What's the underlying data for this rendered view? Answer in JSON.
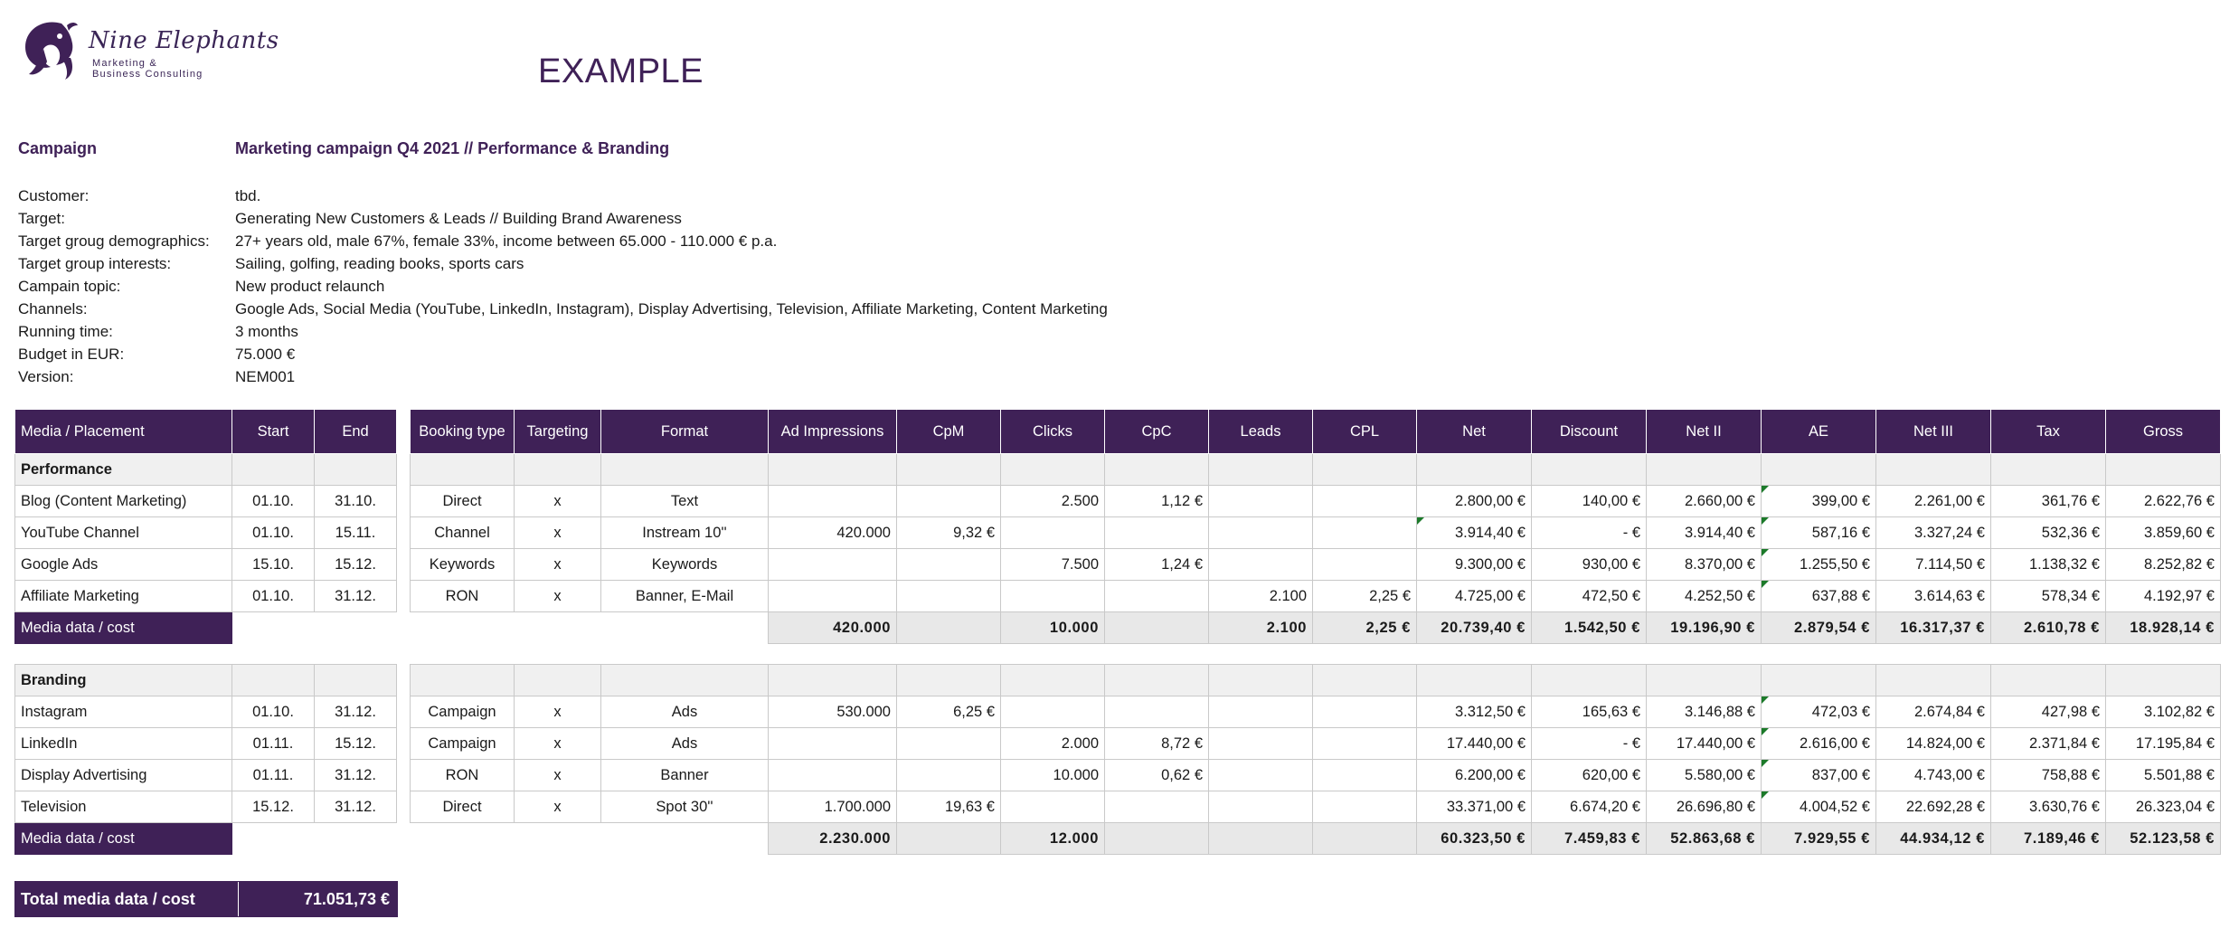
{
  "logo": {
    "name": "Nine Elephants",
    "sub1": "Marketing &",
    "sub2": "Business Consulting"
  },
  "title": "EXAMPLE",
  "campaign": {
    "label": "Campaign",
    "value": "Marketing campaign Q4 2021 // Performance & Branding"
  },
  "info": [
    {
      "k": "Customer:",
      "v": "tbd."
    },
    {
      "k": "Target:",
      "v": "Generating New Customers & Leads // Building Brand Awareness"
    },
    {
      "k": "Target groug demographics:",
      "v": "27+ years old, male 67%, female 33%, income between 65.000 - 110.000 € p.a."
    },
    {
      "k": "Target group interests:",
      "v": "Sailing, golfing, reading books, sports cars"
    },
    {
      "k": "Campain topic:",
      "v": "New product relaunch"
    },
    {
      "k": "Channels:",
      "v": "Google Ads, Social Media (YouTube, LinkedIn, Instagram), Display Advertising, Television, Affiliate Marketing, Content Marketing"
    },
    {
      "k": "Running time:",
      "v": "3 months"
    },
    {
      "k": "Budget in EUR:",
      "v": "75.000 €"
    },
    {
      "k": "Version:",
      "v": "NEM001"
    }
  ],
  "left_headers": [
    "Media / Placement",
    "Start",
    "End"
  ],
  "right_headers": [
    "Booking type",
    "Targeting",
    "Format",
    "Ad Impressions",
    "CpM",
    "Clicks",
    "CpC",
    "Leads",
    "CPL",
    "Net",
    "Discount",
    "Net II",
    "AE",
    "Net III",
    "Tax",
    "Gross"
  ],
  "sections": [
    {
      "name": "Performance",
      "rows": [
        {
          "media": "Blog (Content Marketing)",
          "start": "01.10.",
          "end": "31.10.",
          "cells": [
            "Direct",
            "x",
            "Text",
            "",
            "",
            "2.500",
            "1,12 €",
            "",
            "",
            "2.800,00 €",
            "140,00 €",
            "2.660,00 €",
            "399,00 €",
            "2.261,00 €",
            "361,76 €",
            "2.622,76 €"
          ]
        },
        {
          "media": "YouTube Channel",
          "start": "01.10.",
          "end": "15.11.",
          "cells": [
            "Channel",
            "x",
            "Instream 10''",
            "420.000",
            "9,32 €",
            "",
            "",
            "",
            "",
            "3.914,40 €",
            "-   €",
            "3.914,40 €",
            "587,16 €",
            "3.327,24 €",
            "532,36 €",
            "3.859,60 €"
          ]
        },
        {
          "media": "Google Ads",
          "start": "15.10.",
          "end": "15.12.",
          "cells": [
            "Keywords",
            "x",
            "Keywords",
            "",
            "",
            "7.500",
            "1,24 €",
            "",
            "",
            "9.300,00 €",
            "930,00 €",
            "8.370,00 €",
            "1.255,50 €",
            "7.114,50 €",
            "1.138,32 €",
            "8.252,82 €"
          ]
        },
        {
          "media": "Affiliate Marketing",
          "start": "01.10.",
          "end": "31.12.",
          "cells": [
            "RON",
            "x",
            "Banner, E-Mail",
            "",
            "",
            "",
            "",
            "2.100",
            "2,25 €",
            "4.725,00 €",
            "472,50 €",
            "4.252,50 €",
            "637,88 €",
            "3.614,63 €",
            "578,34 €",
            "4.192,97 €"
          ]
        }
      ],
      "footer_label": "Media data / cost",
      "totals": [
        "420.000",
        "",
        "10.000",
        "",
        "2.100",
        "2,25 €",
        "20.739,40 €",
        "1.542,50 €",
        "19.196,90 €",
        "2.879,54 €",
        "16.317,37 €",
        "2.610,78 €",
        "18.928,14 €"
      ]
    },
    {
      "name": "Branding",
      "rows": [
        {
          "media": "Instagram",
          "start": "01.10.",
          "end": "31.12.",
          "cells": [
            "Campaign",
            "x",
            "Ads",
            "530.000",
            "6,25 €",
            "",
            "",
            "",
            "",
            "3.312,50 €",
            "165,63 €",
            "3.146,88 €",
            "472,03 €",
            "2.674,84 €",
            "427,98 €",
            "3.102,82 €"
          ]
        },
        {
          "media": "LinkedIn",
          "start": "01.11.",
          "end": "15.12.",
          "cells": [
            "Campaign",
            "x",
            "Ads",
            "",
            "",
            "2.000",
            "8,72 €",
            "",
            "",
            "17.440,00 €",
            "-   €",
            "17.440,00 €",
            "2.616,00 €",
            "14.824,00 €",
            "2.371,84 €",
            "17.195,84 €"
          ]
        },
        {
          "media": "Display Advertising",
          "start": "01.11.",
          "end": "31.12.",
          "cells": [
            "RON",
            "x",
            "Banner",
            "",
            "",
            "10.000",
            "0,62 €",
            "",
            "",
            "6.200,00 €",
            "620,00 €",
            "5.580,00 €",
            "837,00 €",
            "4.743,00 €",
            "758,88 €",
            "5.501,88 €"
          ]
        },
        {
          "media": "Television",
          "start": "15.12.",
          "end": "31.12.",
          "cells": [
            "Direct",
            "x",
            "Spot 30''",
            "1.700.000",
            "19,63 €",
            "",
            "",
            "",
            "",
            "33.371,00 €",
            "6.674,20 €",
            "26.696,80 €",
            "4.004,52 €",
            "22.692,28 €",
            "3.630,76 €",
            "26.323,04 €"
          ]
        }
      ],
      "footer_label": "Media data / cost",
      "totals": [
        "2.230.000",
        "",
        "12.000",
        "",
        "",
        "",
        "60.323,50 €",
        "7.459,83 €",
        "52.863,68 €",
        "7.929,55 €",
        "44.934,12 €",
        "7.189,46 €",
        "52.123,58 €"
      ]
    }
  ],
  "total": {
    "label": "Total media data / cost",
    "value": "71.051,73 €"
  },
  "colors": {
    "brand": "#3f2157",
    "header_text": "#ffffff",
    "section_bg": "#f0f0f0",
    "totals_bg": "#e8e8e8",
    "comment_flag": "#1c7a2a"
  }
}
